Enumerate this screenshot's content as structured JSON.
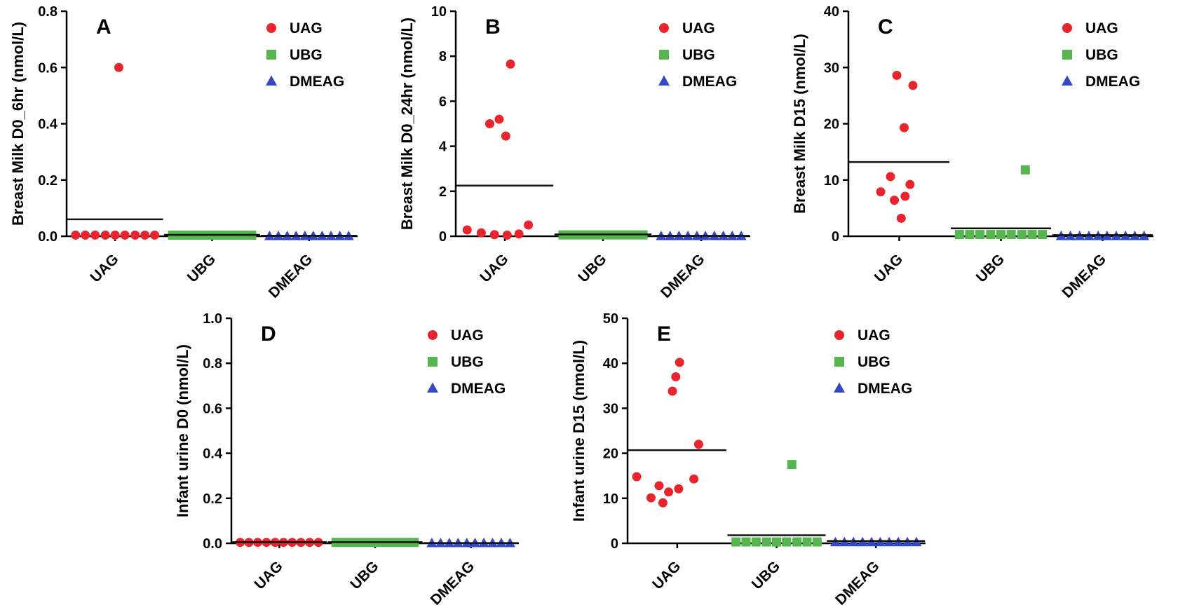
{
  "figure": {
    "background": "#ffffff",
    "panel_labels": [
      "A",
      "B",
      "C",
      "D",
      "E"
    ],
    "groups": [
      "UAG",
      "UBG",
      "DMEAG"
    ],
    "colors": {
      "uag": "#e8242c",
      "ubg": "#56b54e",
      "dmeag": "#3348c4",
      "mean_line": "#111111"
    }
  },
  "chart_data": [
    {
      "type": "scatter",
      "panel": "A",
      "title": "",
      "ylabel": "Breast Milk D0_6hr (nmol/L)",
      "xlabel": "",
      "ylim": [
        0,
        0.8
      ],
      "ytick_values": [
        0,
        0.2,
        0.4,
        0.6,
        0.8
      ],
      "ytick_labels": [
        "0.0",
        "0.2",
        "0.4",
        "0.6",
        "0.8"
      ],
      "categories": [
        "UAG",
        "UBG",
        "DMEAG"
      ],
      "legend_position": "top-right",
      "grid": false,
      "series": [
        {
          "name": "UAG",
          "marker": "circle",
          "color": "#e8242c",
          "mean_line": 0.06,
          "points": [
            [
              0.08,
              0.6
            ],
            [
              -0.85,
              0.004
            ],
            [
              -0.64,
              0.004
            ],
            [
              -0.43,
              0.004
            ],
            [
              -0.21,
              0.004
            ],
            [
              0,
              0.004
            ],
            [
              0.21,
              0.004
            ],
            [
              0.43,
              0.004
            ],
            [
              0.64,
              0.004
            ],
            [
              0.85,
              0.004
            ]
          ]
        },
        {
          "name": "UBG",
          "marker": "square",
          "color": "#56b54e",
          "mean_line": 0.005,
          "points": [
            [
              -0.85,
              0.004
            ],
            [
              -0.66,
              0.004
            ],
            [
              -0.47,
              0.004
            ],
            [
              -0.28,
              0.004
            ],
            [
              -0.09,
              0.004
            ],
            [
              0.09,
              0.004
            ],
            [
              0.28,
              0.004
            ],
            [
              0.47,
              0.004
            ],
            [
              0.66,
              0.004
            ],
            [
              0.85,
              0.004
            ]
          ]
        },
        {
          "name": "DMEAG",
          "marker": "triangle",
          "color": "#3348c4",
          "mean_line": 0.002,
          "points": [
            [
              -0.85,
              0
            ],
            [
              -0.66,
              0
            ],
            [
              -0.47,
              0
            ],
            [
              -0.28,
              0
            ],
            [
              -0.09,
              0
            ],
            [
              0.09,
              0
            ],
            [
              0.28,
              0
            ],
            [
              0.47,
              0
            ],
            [
              0.66,
              0
            ],
            [
              0.85,
              0
            ]
          ]
        }
      ]
    },
    {
      "type": "scatter",
      "panel": "B",
      "title": "",
      "ylabel": "Breast Milk D0_24hr (nmol/L)",
      "xlabel": "",
      "ylim": [
        0,
        10
      ],
      "ytick_values": [
        0,
        2,
        4,
        6,
        8,
        10
      ],
      "ytick_labels": [
        "0",
        "2",
        "4",
        "6",
        "8",
        "10"
      ],
      "categories": [
        "UAG",
        "UBG",
        "DMEAG"
      ],
      "legend_position": "top-right",
      "grid": false,
      "series": [
        {
          "name": "UAG",
          "marker": "circle",
          "color": "#e8242c",
          "mean_line": 2.25,
          "points": [
            [
              0.12,
              7.65
            ],
            [
              -0.12,
              5.2
            ],
            [
              -0.32,
              5.0
            ],
            [
              0.02,
              4.45
            ],
            [
              0.5,
              0.5
            ],
            [
              -0.8,
              0.28
            ],
            [
              -0.5,
              0.15
            ],
            [
              -0.22,
              0.07
            ],
            [
              0.05,
              0.05
            ],
            [
              0.3,
              0.1
            ]
          ]
        },
        {
          "name": "UBG",
          "marker": "square",
          "color": "#56b54e",
          "mean_line": 0.08,
          "points": [
            [
              -0.85,
              0.06
            ],
            [
              -0.66,
              0.06
            ],
            [
              -0.47,
              0.06
            ],
            [
              -0.28,
              0.06
            ],
            [
              -0.09,
              0.06
            ],
            [
              0.09,
              0.06
            ],
            [
              0.28,
              0.06
            ],
            [
              0.47,
              0.06
            ],
            [
              0.66,
              0.06
            ],
            [
              0.85,
              0.06
            ]
          ]
        },
        {
          "name": "DMEAG",
          "marker": "triangle",
          "color": "#3348c4",
          "mean_line": 0.02,
          "points": [
            [
              -0.85,
              0
            ],
            [
              -0.66,
              0
            ],
            [
              -0.47,
              0
            ],
            [
              -0.28,
              0
            ],
            [
              -0.09,
              0
            ],
            [
              0.09,
              0
            ],
            [
              0.28,
              0
            ],
            [
              0.47,
              0
            ],
            [
              0.66,
              0
            ],
            [
              0.85,
              0
            ]
          ]
        }
      ]
    },
    {
      "type": "scatter",
      "panel": "C",
      "title": "",
      "ylabel": "Breast Milk D15 (nmol/L)",
      "xlabel": "",
      "ylim": [
        0,
        40
      ],
      "ytick_values": [
        0,
        10,
        20,
        30,
        40
      ],
      "ytick_labels": [
        "0",
        "10",
        "20",
        "30",
        "40"
      ],
      "categories": [
        "UAG",
        "UBG",
        "DMEAG"
      ],
      "legend_position": "top-right",
      "grid": false,
      "series": [
        {
          "name": "UAG",
          "marker": "circle",
          "color": "#e8242c",
          "mean_line": 13.2,
          "points": [
            [
              -0.05,
              28.6
            ],
            [
              0.28,
              26.8
            ],
            [
              0.1,
              19.3
            ],
            [
              -0.18,
              10.6
            ],
            [
              0.22,
              9.2
            ],
            [
              -0.38,
              7.9
            ],
            [
              0.12,
              7.1
            ],
            [
              -0.1,
              6.4
            ],
            [
              0.04,
              3.2
            ]
          ]
        },
        {
          "name": "UBG",
          "marker": "square",
          "color": "#56b54e",
          "mean_line": 1.4,
          "points": [
            [
              0.5,
              11.8
            ],
            [
              -0.85,
              0.3
            ],
            [
              -0.64,
              0.3
            ],
            [
              -0.43,
              0.3
            ],
            [
              -0.21,
              0.3
            ],
            [
              0,
              0.3
            ],
            [
              0.21,
              0.3
            ],
            [
              0.43,
              0.3
            ],
            [
              0.64,
              0.3
            ],
            [
              0.85,
              0.3
            ]
          ]
        },
        {
          "name": "DMEAG",
          "marker": "triangle",
          "color": "#3348c4",
          "mean_line": 0.2,
          "points": [
            [
              -0.85,
              0
            ],
            [
              -0.66,
              0
            ],
            [
              -0.47,
              0
            ],
            [
              -0.28,
              0
            ],
            [
              -0.09,
              0
            ],
            [
              0.09,
              0
            ],
            [
              0.28,
              0
            ],
            [
              0.47,
              0
            ],
            [
              0.66,
              0
            ],
            [
              0.85,
              0
            ]
          ]
        }
      ]
    },
    {
      "type": "scatter",
      "panel": "D",
      "title": "",
      "ylabel": "Infant urine D0 (nmol/L)",
      "xlabel": "",
      "ylim": [
        0,
        1.0
      ],
      "ytick_values": [
        0,
        0.2,
        0.4,
        0.6,
        0.8,
        1.0
      ],
      "ytick_labels": [
        "0.0",
        "0.2",
        "0.4",
        "0.6",
        "0.8",
        "1.0"
      ],
      "categories": [
        "UAG",
        "UBG",
        "DMEAG"
      ],
      "legend_position": "top-right",
      "grid": false,
      "series": [
        {
          "name": "UAG",
          "marker": "circle",
          "color": "#e8242c",
          "mean_line": 0.005,
          "points": [
            [
              -0.85,
              0.004
            ],
            [
              -0.66,
              0.004
            ],
            [
              -0.47,
              0.004
            ],
            [
              -0.28,
              0.004
            ],
            [
              -0.09,
              0.004
            ],
            [
              0.09,
              0.004
            ],
            [
              0.28,
              0.004
            ],
            [
              0.47,
              0.004
            ],
            [
              0.66,
              0.004
            ],
            [
              0.85,
              0.004
            ]
          ]
        },
        {
          "name": "UBG",
          "marker": "square",
          "color": "#56b54e",
          "mean_line": 0.005,
          "points": [
            [
              -0.85,
              0.004
            ],
            [
              -0.66,
              0.004
            ],
            [
              -0.47,
              0.004
            ],
            [
              -0.28,
              0.004
            ],
            [
              -0.09,
              0.004
            ],
            [
              0.09,
              0.004
            ],
            [
              0.28,
              0.004
            ],
            [
              0.47,
              0.004
            ],
            [
              0.66,
              0.004
            ],
            [
              0.85,
              0.004
            ]
          ]
        },
        {
          "name": "DMEAG",
          "marker": "triangle",
          "color": "#3348c4",
          "mean_line": 0.001,
          "points": [
            [
              -0.85,
              0
            ],
            [
              -0.66,
              0
            ],
            [
              -0.47,
              0
            ],
            [
              -0.28,
              0
            ],
            [
              -0.09,
              0
            ],
            [
              0.09,
              0
            ],
            [
              0.28,
              0
            ],
            [
              0.47,
              0
            ],
            [
              0.66,
              0
            ],
            [
              0.85,
              0
            ]
          ]
        }
      ]
    },
    {
      "type": "scatter",
      "panel": "E",
      "title": "",
      "ylabel": "Infant urine D15 (nmol/L)",
      "xlabel": "",
      "ylim": [
        0,
        50
      ],
      "ytick_values": [
        0,
        10,
        20,
        30,
        40,
        50
      ],
      "ytick_labels": [
        "0",
        "10",
        "20",
        "30",
        "40",
        "50"
      ],
      "categories": [
        "UAG",
        "UBG",
        "DMEAG"
      ],
      "legend_position": "top-right",
      "grid": false,
      "series": [
        {
          "name": "UAG",
          "marker": "circle",
          "color": "#e8242c",
          "mean_line": 20.7,
          "points": [
            [
              0.05,
              40.2
            ],
            [
              -0.03,
              37.0
            ],
            [
              -0.1,
              33.8
            ],
            [
              0.45,
              22.0
            ],
            [
              -0.85,
              14.8
            ],
            [
              0.35,
              14.3
            ],
            [
              -0.38,
              12.8
            ],
            [
              0.03,
              12.1
            ],
            [
              -0.18,
              11.4
            ],
            [
              -0.55,
              10.1
            ],
            [
              -0.3,
              9.0
            ]
          ]
        },
        {
          "name": "UBG",
          "marker": "square",
          "color": "#56b54e",
          "mean_line": 1.8,
          "points": [
            [
              0.32,
              17.5
            ],
            [
              -0.85,
              0.3
            ],
            [
              -0.64,
              0.3
            ],
            [
              -0.43,
              0.3
            ],
            [
              -0.21,
              0.3
            ],
            [
              0,
              0.3
            ],
            [
              0.21,
              0.3
            ],
            [
              0.43,
              0.3
            ],
            [
              0.64,
              0.3
            ],
            [
              0.85,
              0.3
            ]
          ]
        },
        {
          "name": "DMEAG",
          "marker": "triangle",
          "color": "#3348c4",
          "mean_line": 0.5,
          "points": [
            [
              -0.85,
              0.2
            ],
            [
              -0.66,
              0.2
            ],
            [
              -0.47,
              0.2
            ],
            [
              -0.28,
              0.2
            ],
            [
              -0.09,
              0.2
            ],
            [
              0.09,
              0.2
            ],
            [
              0.28,
              0.2
            ],
            [
              0.47,
              0.2
            ],
            [
              0.66,
              0.2
            ],
            [
              0.85,
              0.2
            ]
          ]
        }
      ]
    }
  ]
}
